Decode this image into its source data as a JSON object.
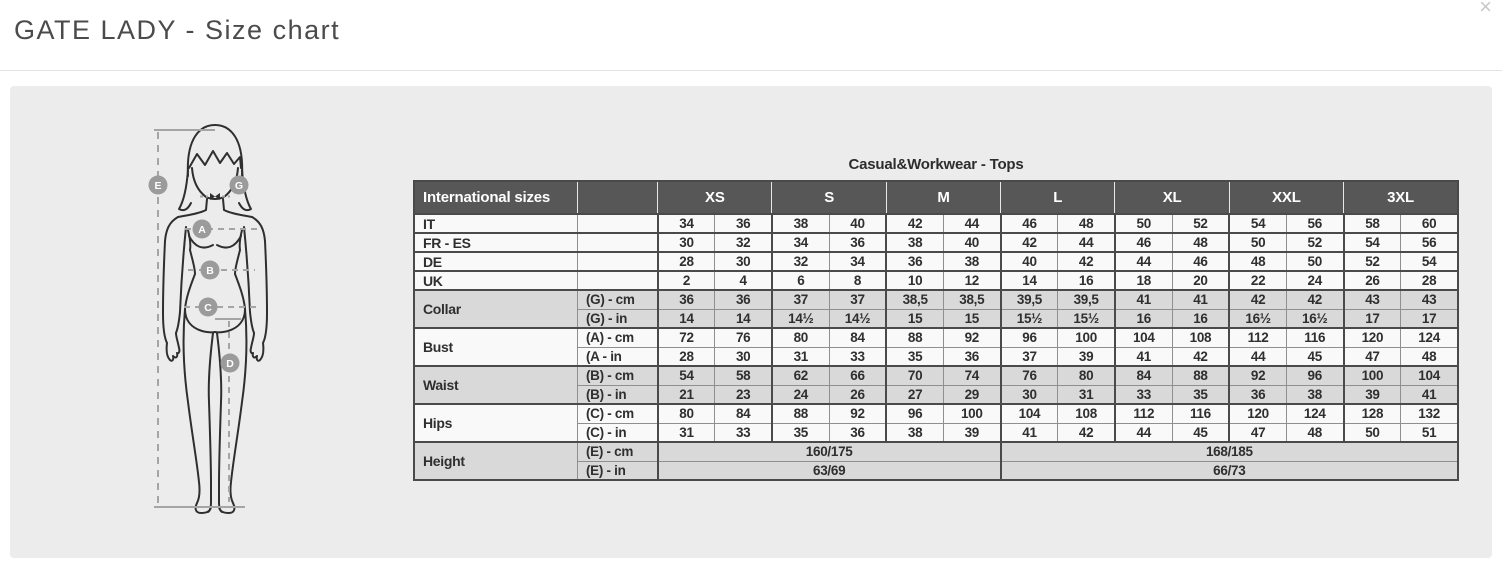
{
  "header": {
    "title": "GATE LADY - Size chart",
    "close_glyph": "×"
  },
  "table": {
    "title": "Casual&Workwear - Tops",
    "corner_label": "International sizes",
    "size_headers": [
      "XS",
      "S",
      "M",
      "L",
      "XL",
      "XXL",
      "3XL"
    ],
    "size_rows": [
      {
        "label": "IT",
        "values": [
          "34",
          "36",
          "38",
          "40",
          "42",
          "44",
          "46",
          "48",
          "50",
          "52",
          "54",
          "56",
          "58",
          "60"
        ]
      },
      {
        "label": "FR - ES",
        "values": [
          "30",
          "32",
          "34",
          "36",
          "38",
          "40",
          "42",
          "44",
          "46",
          "48",
          "50",
          "52",
          "54",
          "56"
        ]
      },
      {
        "label": "DE",
        "values": [
          "28",
          "30",
          "32",
          "34",
          "36",
          "38",
          "40",
          "42",
          "44",
          "46",
          "48",
          "50",
          "52",
          "54"
        ]
      },
      {
        "label": "UK",
        "values": [
          "2",
          "4",
          "6",
          "8",
          "10",
          "12",
          "14",
          "16",
          "18",
          "20",
          "22",
          "24",
          "26",
          "28"
        ]
      }
    ],
    "measure_groups": [
      {
        "label": "Collar",
        "shade": "gray",
        "rows": [
          {
            "unit": "(G) - cm",
            "values": [
              "36",
              "36",
              "37",
              "37",
              "38,5",
              "38,5",
              "39,5",
              "39,5",
              "41",
              "41",
              "42",
              "42",
              "43",
              "43"
            ]
          },
          {
            "unit": "(G) - in",
            "values": [
              "14",
              "14",
              "14½",
              "14½",
              "15",
              "15",
              "15½",
              "15½",
              "16",
              "16",
              "16½",
              "16½",
              "17",
              "17"
            ]
          }
        ]
      },
      {
        "label": "Bust",
        "shade": "white",
        "rows": [
          {
            "unit": "(A) - cm",
            "values": [
              "72",
              "76",
              "80",
              "84",
              "88",
              "92",
              "96",
              "100",
              "104",
              "108",
              "112",
              "116",
              "120",
              "124"
            ]
          },
          {
            "unit": "(A - in",
            "values": [
              "28",
              "30",
              "31",
              "33",
              "35",
              "36",
              "37",
              "39",
              "41",
              "42",
              "44",
              "45",
              "47",
              "48"
            ]
          }
        ]
      },
      {
        "label": "Waist",
        "shade": "gray",
        "rows": [
          {
            "unit": "(B) - cm",
            "values": [
              "54",
              "58",
              "62",
              "66",
              "70",
              "74",
              "76",
              "80",
              "84",
              "88",
              "92",
              "96",
              "100",
              "104"
            ]
          },
          {
            "unit": "(B) - in",
            "values": [
              "21",
              "23",
              "24",
              "26",
              "27",
              "29",
              "30",
              "31",
              "33",
              "35",
              "36",
              "38",
              "39",
              "41"
            ]
          }
        ]
      },
      {
        "label": "Hips",
        "shade": "white",
        "rows": [
          {
            "unit": "(C) - cm",
            "values": [
              "80",
              "84",
              "88",
              "92",
              "96",
              "100",
              "104",
              "108",
              "112",
              "116",
              "120",
              "124",
              "128",
              "132"
            ]
          },
          {
            "unit": "(C) - in",
            "values": [
              "31",
              "33",
              "35",
              "36",
              "38",
              "39",
              "41",
              "42",
              "44",
              "45",
              "47",
              "48",
              "50",
              "51"
            ]
          }
        ]
      }
    ],
    "height_group": {
      "label": "Height",
      "shade": "gray",
      "rows": [
        {
          "unit": "(E) - cm",
          "left": "160/175",
          "right": "168/185"
        },
        {
          "unit": "(E) - in",
          "left": "63/69",
          "right": "66/73"
        }
      ]
    }
  },
  "figure": {
    "markers": [
      {
        "letter": "E"
      },
      {
        "letter": "G"
      },
      {
        "letter": "A"
      },
      {
        "letter": "B"
      },
      {
        "letter": "C"
      },
      {
        "letter": "D"
      }
    ]
  },
  "colors": {
    "header_bg": "#575757",
    "row_gray": "#d9d9d9",
    "row_white": "#f9f9f9",
    "panel_bg": "#ececec",
    "border_dark": "#4a4a4a",
    "border_light": "#8f8f8f",
    "marker_gray": "#9b9b9b",
    "outline": "#2f2f2f",
    "dash_gray": "#a5a5a5"
  }
}
